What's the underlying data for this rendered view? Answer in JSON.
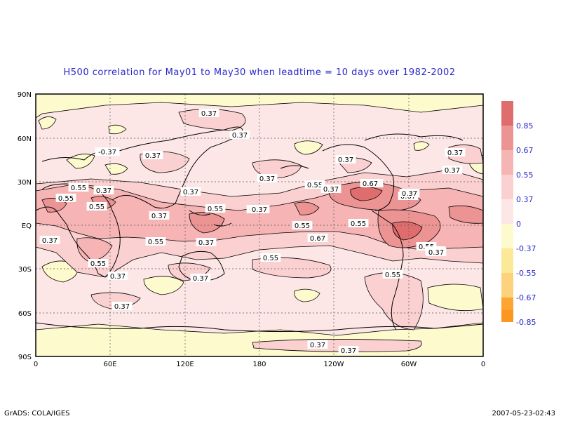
{
  "title": "H500 correlation for  May01 to May30  when leadtime =  10 days over 1982-2002",
  "footer": {
    "left": "GrADS: COLA/IGES",
    "right": "2007-05-23-02:43"
  },
  "axes": {
    "lat_labels": [
      "90N",
      "60N",
      "30N",
      "EQ",
      "30S",
      "60S",
      "90S"
    ],
    "lon_labels": [
      "0",
      "60E",
      "120E",
      "180",
      "120W",
      "60W",
      "0"
    ]
  },
  "colorbar": [
    {
      "label": "0.85",
      "color": "#e06d6d"
    },
    {
      "label": "0.67",
      "color": "#ec9393"
    },
    {
      "label": "0.55",
      "color": "#f6b4b4"
    },
    {
      "label": "0.37",
      "color": "#fbd0d0"
    },
    {
      "label": "0",
      "color": "#fde6e6"
    },
    {
      "label": "-0.37",
      "color": "#fdfbcd"
    },
    {
      "label": "-0.55",
      "color": "#fbe998"
    },
    {
      "label": "-0.67",
      "color": "#fcd27d"
    },
    {
      "label": "-0.85",
      "color": "#fbb13f"
    }
  ],
  "colorbar_extra": [
    "#fca532",
    "#fb9620"
  ],
  "contour_labels": [
    "0.37",
    "0.37",
    "-0.37",
    "0.37",
    "0.37",
    "0.37",
    "0.37",
    "0.37",
    "0.55",
    "0.37",
    "0.55",
    "0.37",
    "0.55",
    "0.55",
    "0.37",
    "0.37",
    "0.55",
    "0.37",
    "0.67",
    "0.67",
    "0.55",
    "0.37",
    "0.55",
    "0.37",
    "0.55",
    "0.55",
    "0.55",
    "0.37",
    "0.37",
    "0.67",
    "0.55",
    "0.55",
    "0.37",
    "0.37",
    "0.37",
    "0.37",
    "0.37",
    "0.37",
    "0.37",
    "0.37"
  ]
}
